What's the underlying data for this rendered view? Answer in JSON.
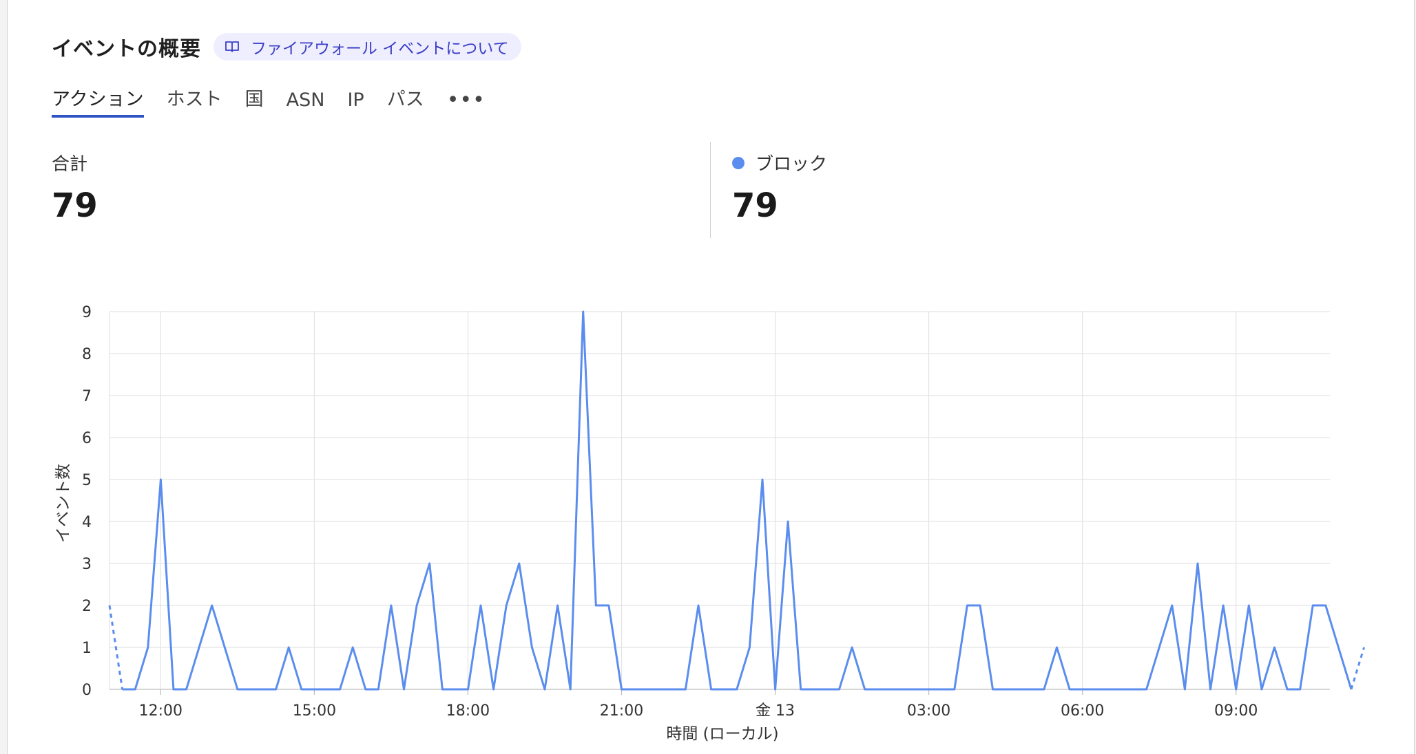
{
  "header": {
    "title": "イベントの概要",
    "doc_link_label": "ファイアウォール イベントについて"
  },
  "tabs": [
    {
      "label": "アクション",
      "active": true
    },
    {
      "label": "ホスト",
      "active": false
    },
    {
      "label": "国",
      "active": false
    },
    {
      "label": "ASN",
      "active": false
    },
    {
      "label": "IP",
      "active": false
    },
    {
      "label": "パス",
      "active": false
    }
  ],
  "more_tab_label": "•••",
  "stats": {
    "total": {
      "label": "合計",
      "value": "79"
    },
    "block": {
      "label": "ブロック",
      "value": "79",
      "color": "#5b8def"
    }
  },
  "chart_data": {
    "type": "line",
    "xlabel": "時間 (ローカル)",
    "ylabel": "イベント数",
    "ylim": [
      0,
      9
    ],
    "yticks": [
      0,
      1,
      2,
      3,
      4,
      5,
      6,
      7,
      8,
      9
    ],
    "xlim_hours": [
      11.0,
      34.833
    ],
    "xticks": [
      {
        "label": "12:00",
        "hour": 12
      },
      {
        "label": "15:00",
        "hour": 15
      },
      {
        "label": "18:00",
        "hour": 18
      },
      {
        "label": "21:00",
        "hour": 21
      },
      {
        "label": "金 13",
        "hour": 24
      },
      {
        "label": "03:00",
        "hour": 27
      },
      {
        "label": "06:00",
        "hour": 30
      },
      {
        "label": "09:00",
        "hour": 33
      }
    ],
    "grid": true,
    "series": [
      {
        "name": "ブロック",
        "color": "#5b8def",
        "x_hours_start": 11.0,
        "x_step_hours": 0.25,
        "dashed_edges": true,
        "values": [
          2,
          0,
          0,
          1,
          5,
          0,
          0,
          1,
          2,
          1,
          0,
          0,
          0,
          0,
          1,
          0,
          0,
          0,
          0,
          1,
          0,
          0,
          2,
          0,
          2,
          3,
          0,
          0,
          0,
          2,
          0,
          2,
          3,
          1,
          0,
          2,
          0,
          9,
          2,
          2,
          0,
          0,
          0,
          0,
          0,
          0,
          2,
          0,
          0,
          0,
          1,
          5,
          0,
          4,
          0,
          0,
          0,
          0,
          1,
          0,
          0,
          0,
          0,
          0,
          0,
          0,
          0,
          2,
          2,
          0,
          0,
          0,
          0,
          0,
          1,
          0,
          0,
          0,
          0,
          0,
          0,
          0,
          1,
          2,
          0,
          3,
          0,
          2,
          0,
          2,
          0,
          1,
          0,
          0,
          2,
          2,
          1,
          0,
          1
        ]
      }
    ]
  }
}
